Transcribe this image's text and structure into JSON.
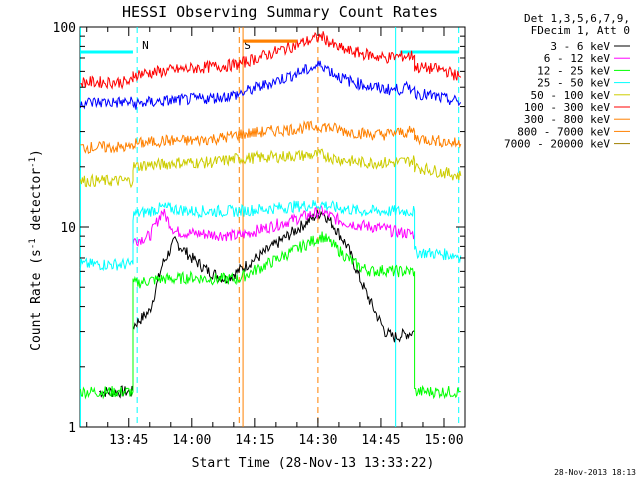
{
  "chart_data": {
    "type": "line",
    "title": "HESSI Observing Summary Count Rates",
    "xlabel": "Start Time (28-Nov-13 13:33:22)",
    "ylabel_main": "Count Rate (s",
    "ylabel_sup1": "-1",
    "ylabel_mid": " detector",
    "ylabel_sup2": "-1",
    "ylabel_end": ")",
    "yscale": "log",
    "ylim": [
      1,
      100
    ],
    "y_ticks": [
      {
        "value": 1,
        "label": "1"
      },
      {
        "value": 10,
        "label": "10"
      },
      {
        "value": 100,
        "label": "100"
      }
    ],
    "xlim_minutes": [
      813.4,
      905
    ],
    "x_ticks": [
      {
        "minute": 825,
        "label": "13:45"
      },
      {
        "minute": 840,
        "label": "14:00"
      },
      {
        "minute": 855,
        "label": "14:15"
      },
      {
        "minute": 870,
        "label": "14:30"
      },
      {
        "minute": 885,
        "label": "14:45"
      },
      {
        "minute": 900,
        "label": "15:00"
      }
    ],
    "legend_header": [
      "Det 1,3,5,6,7,9,",
      "FDecim 1, Att 0"
    ],
    "legend_placement": "right",
    "series": [
      {
        "name": "3 - 6 keV",
        "color": "#000000",
        "points": [
          [
            818,
            1.5
          ],
          [
            826,
            1.5
          ],
          [
            826,
            3.2
          ],
          [
            830,
            3.8
          ],
          [
            833,
            6.5
          ],
          [
            836,
            8.5
          ],
          [
            840,
            7.0
          ],
          [
            844,
            6.0
          ],
          [
            848,
            5.5
          ],
          [
            851,
            6.0
          ],
          [
            871,
            12.0
          ],
          [
            874,
            10.0
          ],
          [
            877,
            8.0
          ],
          [
            880,
            5.5
          ],
          [
            883,
            4.0
          ],
          [
            886,
            3.0
          ],
          [
            888,
            2.8
          ],
          [
            893,
            3.0
          ]
        ]
      },
      {
        "name": "6 - 12 keV",
        "color": "#ff00ff",
        "points": [
          [
            826,
            8.5
          ],
          [
            830,
            9.0
          ],
          [
            833,
            12.0
          ],
          [
            836,
            9.5
          ],
          [
            840,
            9.3
          ],
          [
            844,
            9.2
          ],
          [
            848,
            9.1
          ],
          [
            851,
            9.0
          ],
          [
            871,
            12.0
          ],
          [
            874,
            11.0
          ],
          [
            877,
            10.5
          ],
          [
            880,
            10.2
          ],
          [
            883,
            10.0
          ],
          [
            886,
            9.8
          ],
          [
            888,
            9.5
          ],
          [
            893,
            9.2
          ]
        ]
      },
      {
        "name": "12 - 25 keV",
        "color": "#00ff00",
        "points": [
          [
            813.5,
            1.5
          ],
          [
            826,
            1.5
          ],
          [
            826,
            5.2
          ],
          [
            830,
            5.4
          ],
          [
            833,
            5.5
          ],
          [
            836,
            5.5
          ],
          [
            840,
            5.6
          ],
          [
            844,
            5.5
          ],
          [
            848,
            5.5
          ],
          [
            851,
            5.5
          ],
          [
            871,
            9.0
          ],
          [
            874,
            8.0
          ],
          [
            877,
            7.0
          ],
          [
            880,
            6.3
          ],
          [
            883,
            6.0
          ],
          [
            886,
            6.1
          ],
          [
            888,
            6.0
          ],
          [
            893,
            6.0
          ],
          [
            893,
            1.5
          ],
          [
            904,
            1.5
          ]
        ]
      },
      {
        "name": "25 - 50 keV",
        "color": "#00ffff",
        "points": [
          [
            813.5,
            6.5
          ],
          [
            826,
            6.5
          ],
          [
            826,
            11.5
          ],
          [
            830,
            12.0
          ],
          [
            833,
            12.5
          ],
          [
            836,
            12.3
          ],
          [
            840,
            12.0
          ],
          [
            844,
            12.0
          ],
          [
            848,
            12.0
          ],
          [
            851,
            12.0
          ],
          [
            871,
            13.0
          ],
          [
            874,
            12.5
          ],
          [
            877,
            12.3
          ],
          [
            880,
            12.0
          ],
          [
            883,
            12.0
          ],
          [
            886,
            12.0
          ],
          [
            888,
            12.0
          ],
          [
            893,
            12.0
          ],
          [
            893,
            7.5
          ],
          [
            904,
            7.2
          ]
        ]
      },
      {
        "name": "50 - 100 keV",
        "color": "#cccc00",
        "points": [
          [
            813.5,
            17.0
          ],
          [
            826,
            17.0
          ],
          [
            826,
            20.0
          ],
          [
            830,
            20.5
          ],
          [
            833,
            20.5
          ],
          [
            836,
            21.0
          ],
          [
            840,
            21.0
          ],
          [
            844,
            21.0
          ],
          [
            848,
            21.5
          ],
          [
            851,
            22.0
          ],
          [
            871,
            23.0
          ],
          [
            874,
            22.0
          ],
          [
            877,
            21.5
          ],
          [
            880,
            21.0
          ],
          [
            883,
            21.0
          ],
          [
            886,
            21.0
          ],
          [
            888,
            21.0
          ],
          [
            893,
            21.5
          ],
          [
            893,
            20.0
          ],
          [
            904,
            18.0
          ]
        ]
      },
      {
        "name": "100 - 300 keV",
        "color": "#ff0000",
        "points": [
          [
            813.5,
            53.0
          ],
          [
            826,
            53.0
          ],
          [
            826,
            58.0
          ],
          [
            830,
            59.0
          ],
          [
            833,
            60.0
          ],
          [
            836,
            61.0
          ],
          [
            840,
            62.0
          ],
          [
            844,
            63.0
          ],
          [
            848,
            64.0
          ],
          [
            851,
            65.0
          ],
          [
            871,
            90.0
          ],
          [
            874,
            80.0
          ],
          [
            877,
            76.0
          ],
          [
            880,
            74.0
          ],
          [
            883,
            72.0
          ],
          [
            886,
            70.0
          ],
          [
            888,
            71.0
          ],
          [
            893,
            72.0
          ],
          [
            893,
            63.0
          ],
          [
            900,
            61.0
          ],
          [
            904,
            56.0
          ]
        ]
      },
      {
        "name": "300 - 800 keV",
        "color": "#ff8000",
        "points": [
          [
            813.5,
            25.0
          ],
          [
            826,
            25.0
          ],
          [
            826,
            26.0
          ],
          [
            830,
            26.5
          ],
          [
            833,
            27.0
          ],
          [
            836,
            27.0
          ],
          [
            840,
            27.0
          ],
          [
            844,
            27.5
          ],
          [
            848,
            28.0
          ],
          [
            851,
            29.0
          ],
          [
            871,
            32.0
          ],
          [
            874,
            31.0
          ],
          [
            877,
            30.0
          ],
          [
            880,
            29.5
          ],
          [
            883,
            29.0
          ],
          [
            886,
            29.0
          ],
          [
            888,
            29.5
          ],
          [
            893,
            30.0
          ],
          [
            893,
            28.0
          ],
          [
            904,
            26.0
          ]
        ]
      },
      {
        "name": "800 - 7000 keV",
        "color": "#ff8000",
        "points": [
          [
            852.2,
            85.0
          ],
          [
            865,
            85.0
          ]
        ]
      },
      {
        "name": "7000 - 20000 keV",
        "color": "#a08000",
        "points": []
      },
      {
        "name": "",
        "color": "#0000ff",
        "points": [
          [
            813.5,
            42.0
          ],
          [
            826,
            42.0
          ],
          [
            826,
            41.0
          ],
          [
            830,
            42.0
          ],
          [
            833,
            42.5
          ],
          [
            836,
            43.0
          ],
          [
            840,
            43.5
          ],
          [
            844,
            44.0
          ],
          [
            848,
            45.0
          ],
          [
            851,
            46.0
          ],
          [
            871,
            65.0
          ],
          [
            874,
            58.0
          ],
          [
            877,
            54.0
          ],
          [
            880,
            52.0
          ],
          [
            883,
            50.0
          ],
          [
            886,
            49.0
          ],
          [
            888,
            48.5
          ],
          [
            893,
            50.0
          ],
          [
            893,
            47.0
          ],
          [
            904,
            42.0
          ]
        ]
      }
    ],
    "markers": [
      {
        "minute": 827,
        "label": "N",
        "color": "#00ffff",
        "style": "dashed"
      },
      {
        "minute": 851.3,
        "label": "S",
        "color": "#ff8000",
        "style": "dashed"
      },
      {
        "minute": 852.2,
        "label": "",
        "color": "#ff8000",
        "style": "solid"
      },
      {
        "minute": 870,
        "label": "",
        "color": "#ff8000",
        "style": "dashed"
      },
      {
        "minute": 888.5,
        "label": "",
        "color": "#00ffff",
        "style": "solid"
      },
      {
        "minute": 903.5,
        "label": "",
        "color": "#00ffff",
        "style": "dashed"
      },
      {
        "minute": 813.5,
        "label": "",
        "color": "#00ffff",
        "style": "solid"
      }
    ],
    "top_bars": [
      {
        "from": 813.5,
        "to": 826,
        "color": "#00ffff"
      },
      {
        "from": 889.5,
        "to": 903.5,
        "color": "#00ffff"
      },
      {
        "from": 852.2,
        "to": 865,
        "color": "#ff8000"
      }
    ],
    "footer_timestamp": "28-Nov-2013 18:13"
  }
}
